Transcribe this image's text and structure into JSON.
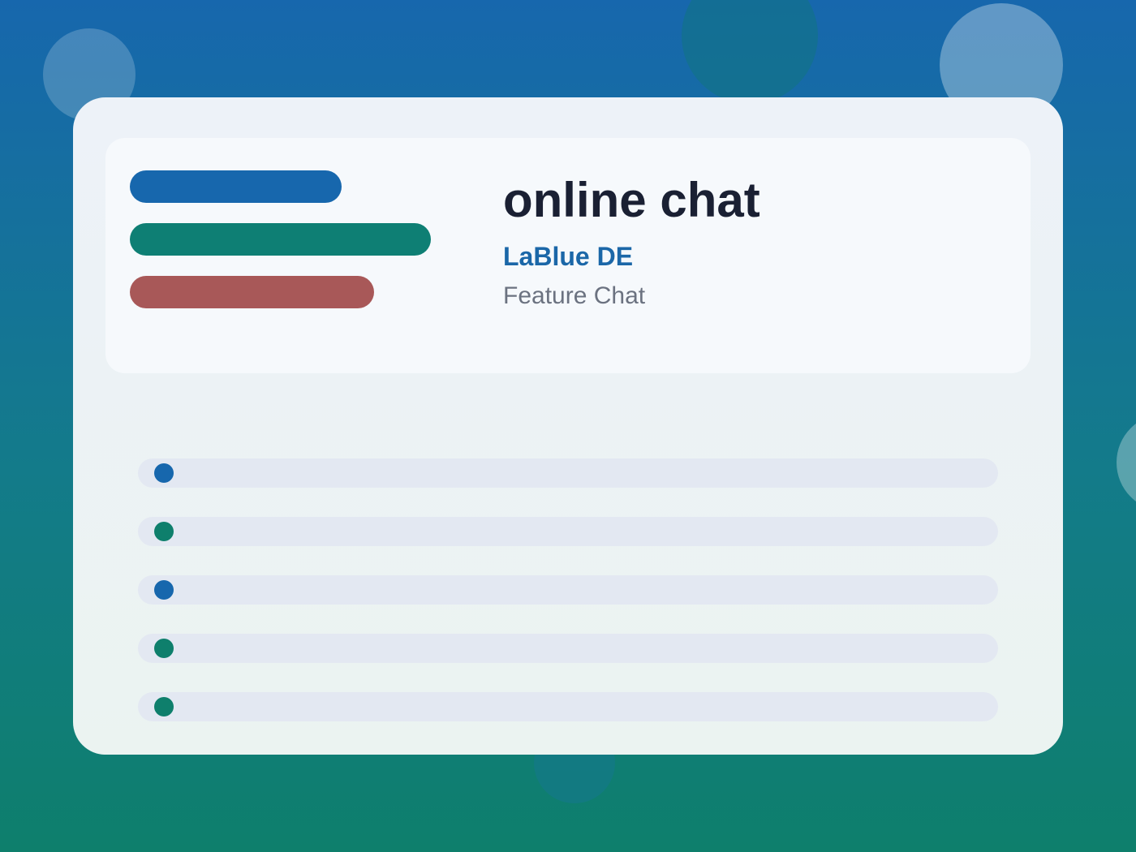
{
  "header": {
    "title": "online chat",
    "subtitle": "LaBlue DE",
    "tagline": "Feature Chat"
  }
}
